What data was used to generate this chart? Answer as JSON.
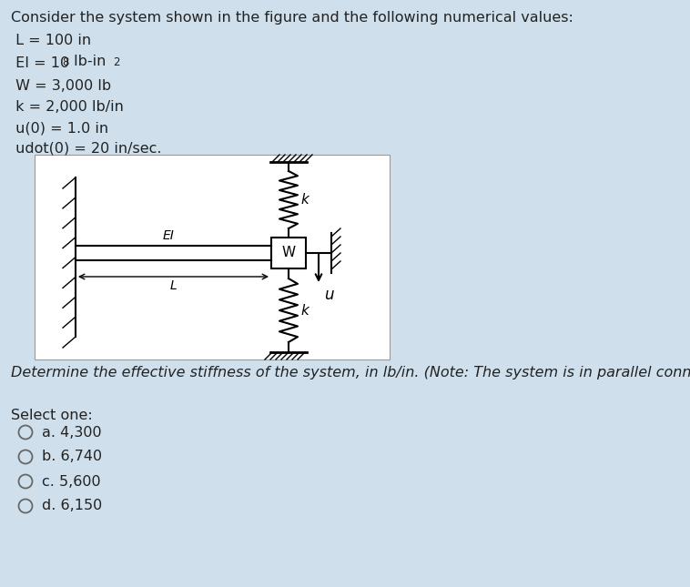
{
  "bg_color": "#cfe0ec",
  "title_text": "Consider the system shown in the figure and the following numerical values:",
  "question_text": "Determine the effective stiffness of the system, in lb/in. (Note: The system is in parallel connection)",
  "select_one": "Select one:",
  "choices": [
    "a. 4,300",
    "b. 6,740",
    "c. 5,600",
    "d. 6,150"
  ],
  "text_color": "#222222",
  "line_color": "#000000",
  "white_box_color": "#ffffff"
}
